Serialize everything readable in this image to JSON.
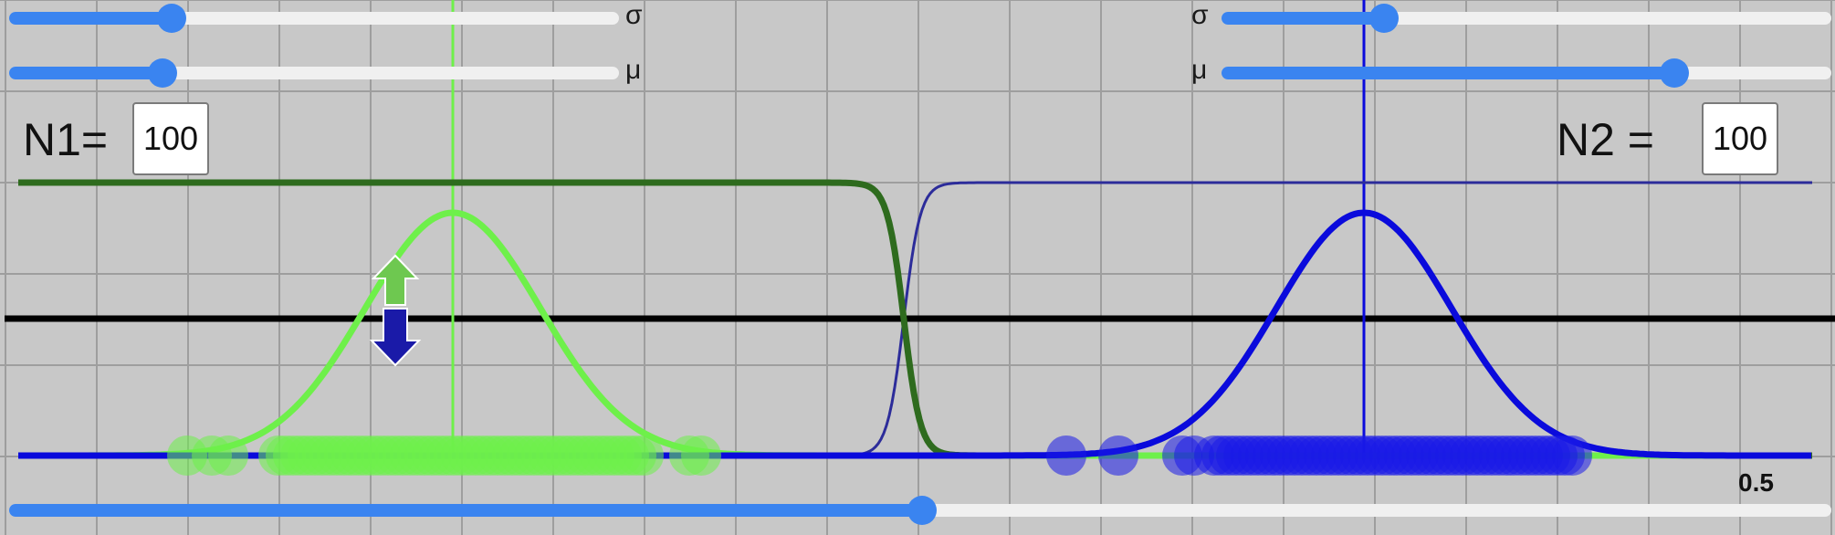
{
  "left_panel": {
    "sigma": {
      "symbol": "σ",
      "fraction": 0.27
    },
    "mu": {
      "symbol": "μ",
      "fraction": 0.25
    },
    "n_label": "N1=",
    "n_value": "100"
  },
  "right_panel": {
    "sigma": {
      "symbol": "σ",
      "fraction": 0.27
    },
    "mu": {
      "symbol": "μ",
      "fraction": 0.75
    },
    "n_label": "N2 =",
    "n_value": "100"
  },
  "threshold": {
    "label": "0.5",
    "fraction": 0.5
  },
  "colors": {
    "green_class": "#6ef04a",
    "blue_class": "#0a0adc",
    "sigmoid_green": "#2e6b1e",
    "sigmoid_blue": "#2c2c9a",
    "slider_accent": "#3a84f0",
    "axis": "#000000"
  },
  "icons": {
    "up_arrow": "up-arrow-icon",
    "down_arrow": "down-arrow-icon"
  }
}
